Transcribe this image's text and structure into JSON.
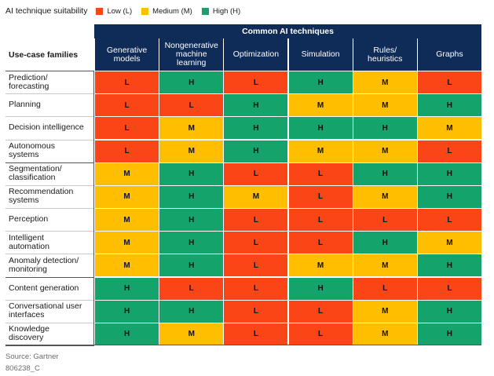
{
  "legend": {
    "title": "AI technique suitability",
    "items": [
      {
        "code": "L",
        "label": "Low (L)",
        "color": "#fa4616"
      },
      {
        "code": "M",
        "label": "Medium (M)",
        "color": "#ffbf00"
      },
      {
        "code": "H",
        "label": "High (H)",
        "color": "#14a36a"
      }
    ]
  },
  "footer": {
    "source": "Source: Gartner",
    "id": "806238_C"
  },
  "chart_data": {
    "type": "table",
    "title": "Common AI techniques",
    "row_header": "Use-case families",
    "columns": [
      "Generative\nmodels",
      "Nongenerative\nmachine\nlearning",
      "Optimization",
      "Simulation",
      "Rules/\nheuristics",
      "Graphs"
    ],
    "rows": [
      {
        "label": "Prediction/\nforecasting",
        "values": [
          "L",
          "H",
          "L",
          "H",
          "M",
          "L"
        ]
      },
      {
        "label": "Planning",
        "values": [
          "L",
          "L",
          "H",
          "M",
          "M",
          "H"
        ]
      },
      {
        "label": "Decision intelligence",
        "values": [
          "L",
          "M",
          "H",
          "H",
          "H",
          "M"
        ]
      },
      {
        "label": "Autonomous\nsystems",
        "values": [
          "L",
          "M",
          "H",
          "M",
          "M",
          "L"
        ]
      },
      {
        "label": "Segmentation/\nclassification",
        "values": [
          "M",
          "H",
          "L",
          "L",
          "H",
          "H"
        ]
      },
      {
        "label": "Recommendation\nsystems",
        "values": [
          "M",
          "H",
          "M",
          "L",
          "M",
          "H"
        ]
      },
      {
        "label": "Perception",
        "values": [
          "M",
          "H",
          "L",
          "L",
          "L",
          "L"
        ]
      },
      {
        "label": "Intelligent\nautomation",
        "values": [
          "M",
          "H",
          "L",
          "L",
          "H",
          "M"
        ]
      },
      {
        "label": "Anomaly detection/\nmonitoring",
        "values": [
          "M",
          "H",
          "L",
          "M",
          "M",
          "H"
        ]
      },
      {
        "label": "Content generation",
        "values": [
          "H",
          "L",
          "L",
          "H",
          "L",
          "L"
        ]
      },
      {
        "label": "Conversational user\ninterfaces",
        "values": [
          "H",
          "H",
          "L",
          "L",
          "M",
          "H"
        ]
      },
      {
        "label": "Knowledge\ndiscovery",
        "values": [
          "H",
          "M",
          "L",
          "L",
          "M",
          "H"
        ]
      }
    ],
    "group_breaks_after": [
      3,
      8
    ]
  }
}
